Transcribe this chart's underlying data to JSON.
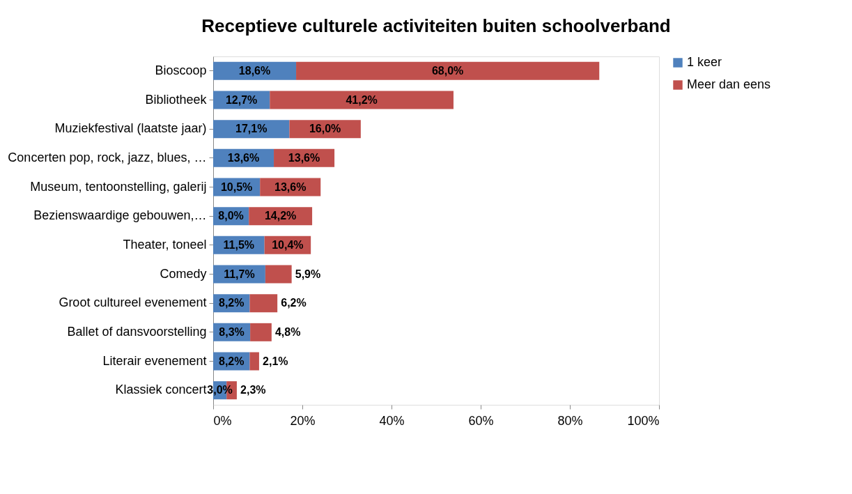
{
  "chart_data": {
    "type": "bar",
    "orientation": "horizontal",
    "stacked": true,
    "title": "Receptieve  culturele activiteiten buiten schoolverband",
    "categories": [
      "Bioscoop",
      "Bibliotheek",
      "Muziekfestival (laatste jaar)",
      "Concerten pop, rock, jazz, blues, …",
      "Museum, tentoonstelling, galerij",
      "Bezienswaardige gebouwen,…",
      "Theater, toneel",
      "Comedy",
      "Groot cultureel evenement",
      "Ballet of dansvoorstelling",
      "Literair evenement",
      "Klassiek concert"
    ],
    "series": [
      {
        "name": "1 keer",
        "color": "#4f81bd",
        "values": [
          18.6,
          12.7,
          17.1,
          13.6,
          10.5,
          8.0,
          11.5,
          11.7,
          8.2,
          8.3,
          8.2,
          3.0
        ],
        "value_labels": [
          "18,6%",
          "12,7%",
          "17,1%",
          "13,6%",
          "10,5%",
          "8,0%",
          "11,5%",
          "11,7%",
          "8,2%",
          "8,3%",
          "8,2%",
          "3,0%"
        ]
      },
      {
        "name": "Meer dan eens",
        "color": "#c0504d",
        "values": [
          68.0,
          41.2,
          16.0,
          13.6,
          13.6,
          14.2,
          10.4,
          5.9,
          6.2,
          4.8,
          2.1,
          2.3
        ],
        "value_labels": [
          "68,0%",
          "41,2%",
          "16,0%",
          "13,6%",
          "13,6%",
          "14,2%",
          "10,4%",
          "5,9%",
          "6,2%",
          "4,8%",
          "2,1%",
          "2,3%"
        ]
      }
    ],
    "xlim": [
      0,
      100
    ],
    "xticks": [
      {
        "value": 0,
        "label": "0%"
      },
      {
        "value": 20,
        "label": "20%"
      },
      {
        "value": 40,
        "label": "40%"
      },
      {
        "value": 60,
        "label": "60%"
      },
      {
        "value": 80,
        "label": "80%"
      },
      {
        "value": 100,
        "label": "100%"
      }
    ],
    "legend": "right",
    "grid": false
  }
}
